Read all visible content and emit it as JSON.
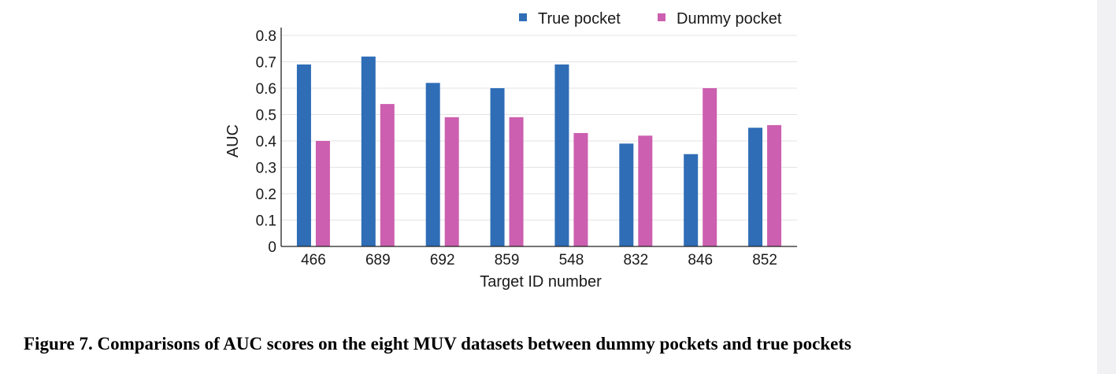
{
  "chart_data": {
    "type": "bar",
    "categories": [
      "466",
      "689",
      "692",
      "859",
      "548",
      "832",
      "846",
      "852"
    ],
    "series": [
      {
        "name": "True pocket",
        "color": "#2f6db6",
        "values": [
          0.69,
          0.72,
          0.62,
          0.6,
          0.69,
          0.39,
          0.35,
          0.45
        ]
      },
      {
        "name": "Dummy pocket",
        "color": "#cc5faf",
        "values": [
          0.4,
          0.54,
          0.49,
          0.49,
          0.43,
          0.42,
          0.6,
          0.46
        ]
      }
    ],
    "xlabel": "Target ID number",
    "ylabel": "AUC",
    "ylim": [
      0,
      0.8
    ],
    "yticks": [
      "0",
      "0.1",
      "0.2",
      "0.3",
      "0.4",
      "0.5",
      "0.6",
      "0.7",
      "0.8"
    ],
    "grid": true,
    "legend_position": "top-right"
  },
  "caption": "Figure 7. Comparisons of AUC scores on the eight MUV datasets between dummy pockets and true pockets"
}
